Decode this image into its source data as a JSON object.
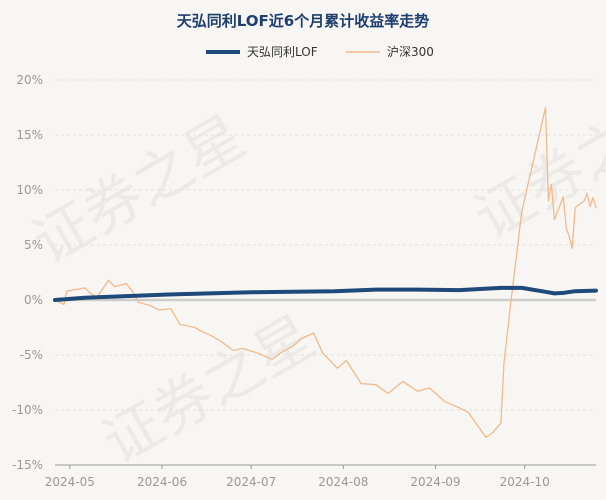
{
  "chart_data": {
    "type": "line",
    "title": "天弘同利LOF近6个月累计收益率走势",
    "xlabel": "",
    "ylabel": "",
    "ylim": [
      -15,
      20
    ],
    "yticks": [
      -15,
      -10,
      -5,
      0,
      5,
      10,
      15,
      20
    ],
    "ytick_labels": [
      "-15%",
      "-10%",
      "-5%",
      "0%",
      "5%",
      "10%",
      "15%",
      "20%"
    ],
    "xlim": [
      "2024-04-26",
      "2024-10-25"
    ],
    "xticks": [
      "2024-05-01",
      "2024-06-01",
      "2024-07-01",
      "2024-08-01",
      "2024-09-01",
      "2024-10-01"
    ],
    "xtick_labels": [
      "2024-05",
      "2024-06",
      "2024-07",
      "2024-08",
      "2024-09",
      "2024-10"
    ],
    "grid": true,
    "legend_position": "top",
    "series": [
      {
        "name": "天弘同利LOF",
        "color": "#1e4a7a",
        "x": [
          "2024-04-26",
          "2024-05-06",
          "2024-05-20",
          "2024-06-03",
          "2024-06-17",
          "2024-07-01",
          "2024-07-15",
          "2024-07-29",
          "2024-08-12",
          "2024-08-26",
          "2024-09-09",
          "2024-09-23",
          "2024-09-30",
          "2024-10-08",
          "2024-10-11",
          "2024-10-14",
          "2024-10-18",
          "2024-10-25"
        ],
        "values": [
          0.0,
          0.2,
          0.35,
          0.5,
          0.6,
          0.7,
          0.75,
          0.8,
          0.95,
          0.95,
          0.9,
          1.1,
          1.1,
          0.75,
          0.6,
          0.65,
          0.8,
          0.85
        ]
      },
      {
        "name": "沪深300",
        "color": "#f2b98c",
        "x": [
          "2024-04-26",
          "2024-04-29",
          "2024-04-30",
          "2024-05-06",
          "2024-05-08",
          "2024-05-10",
          "2024-05-14",
          "2024-05-16",
          "2024-05-20",
          "2024-05-22",
          "2024-05-24",
          "2024-05-28",
          "2024-05-31",
          "2024-06-04",
          "2024-06-07",
          "2024-06-12",
          "2024-06-14",
          "2024-06-18",
          "2024-06-21",
          "2024-06-25",
          "2024-06-28",
          "2024-07-03",
          "2024-07-08",
          "2024-07-11",
          "2024-07-15",
          "2024-07-18",
          "2024-07-22",
          "2024-07-25",
          "2024-07-30",
          "2024-08-02",
          "2024-08-07",
          "2024-08-12",
          "2024-08-16",
          "2024-08-21",
          "2024-08-26",
          "2024-08-30",
          "2024-09-04",
          "2024-09-09",
          "2024-09-12",
          "2024-09-18",
          "2024-09-20",
          "2024-09-23",
          "2024-09-24",
          "2024-09-26",
          "2024-09-30",
          "2024-10-08",
          "2024-10-09",
          "2024-10-10",
          "2024-10-11",
          "2024-10-14",
          "2024-10-15",
          "2024-10-16",
          "2024-10-17",
          "2024-10-18",
          "2024-10-21",
          "2024-10-22",
          "2024-10-23",
          "2024-10-24",
          "2024-10-25"
        ],
        "values": [
          0.0,
          -0.4,
          0.8,
          1.1,
          0.6,
          0.2,
          1.8,
          1.2,
          1.5,
          0.8,
          -0.2,
          -0.5,
          -0.9,
          -0.8,
          -2.2,
          -2.5,
          -2.8,
          -3.3,
          -3.8,
          -4.6,
          -4.4,
          -4.8,
          -5.4,
          -4.8,
          -4.2,
          -3.5,
          -3.0,
          -4.8,
          -6.2,
          -5.5,
          -7.6,
          -7.7,
          -8.5,
          -7.4,
          -8.3,
          -8.0,
          -9.2,
          -9.8,
          -10.2,
          -12.5,
          -12.1,
          -11.2,
          -5.8,
          -1.0,
          8.0,
          17.5,
          9.0,
          10.5,
          7.3,
          9.4,
          6.5,
          5.8,
          4.7,
          8.4,
          9.0,
          9.7,
          8.5,
          9.3,
          8.4
        ]
      }
    ]
  },
  "watermark": "证券之星"
}
